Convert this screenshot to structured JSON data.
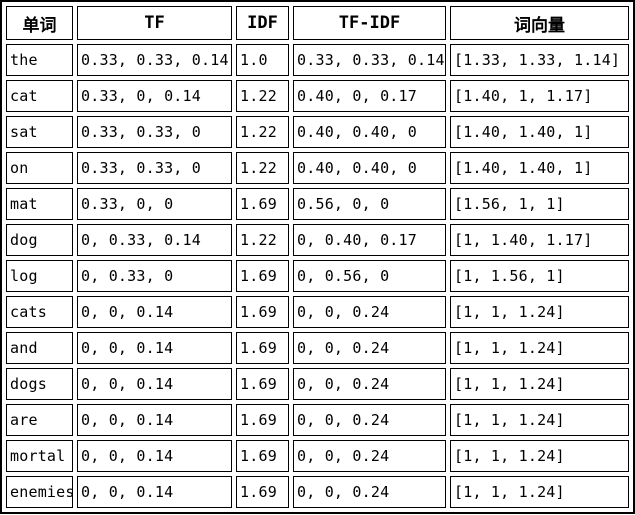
{
  "colors": {
    "border": "#000000",
    "text": "#000000",
    "background": "#ffffff"
  },
  "chart_data": {
    "type": "table",
    "columns": [
      {
        "key": "word",
        "label": "单词"
      },
      {
        "key": "tf",
        "label": "TF"
      },
      {
        "key": "idf",
        "label": "IDF"
      },
      {
        "key": "tfidf",
        "label": "TF-IDF"
      },
      {
        "key": "vector",
        "label": "词向量"
      }
    ],
    "rows": [
      {
        "word": "the",
        "tf": "0.33, 0.33, 0.14",
        "idf": "1.0",
        "tfidf": "0.33, 0.33, 0.14",
        "vector": "[1.33, 1.33, 1.14]"
      },
      {
        "word": "cat",
        "tf": "0.33, 0, 0.14",
        "idf": "1.22",
        "tfidf": "0.40, 0, 0.17",
        "vector": "[1.40, 1, 1.17]"
      },
      {
        "word": "sat",
        "tf": "0.33, 0.33, 0",
        "idf": "1.22",
        "tfidf": "0.40, 0.40, 0",
        "vector": "[1.40, 1.40, 1]"
      },
      {
        "word": "on",
        "tf": "0.33, 0.33, 0",
        "idf": "1.22",
        "tfidf": "0.40, 0.40, 0",
        "vector": "[1.40, 1.40, 1]"
      },
      {
        "word": "mat",
        "tf": "0.33, 0, 0",
        "idf": "1.69",
        "tfidf": "0.56, 0, 0",
        "vector": "[1.56, 1, 1]"
      },
      {
        "word": "dog",
        "tf": "0, 0.33, 0.14",
        "idf": "1.22",
        "tfidf": "0, 0.40, 0.17",
        "vector": "[1, 1.40, 1.17]"
      },
      {
        "word": "log",
        "tf": "0, 0.33, 0",
        "idf": "1.69",
        "tfidf": "0, 0.56, 0",
        "vector": "[1, 1.56, 1]"
      },
      {
        "word": "cats",
        "tf": "0, 0, 0.14",
        "idf": "1.69",
        "tfidf": "0, 0, 0.24",
        "vector": "[1, 1, 1.24]"
      },
      {
        "word": "and",
        "tf": "0, 0, 0.14",
        "idf": "1.69",
        "tfidf": "0, 0, 0.24",
        "vector": "[1, 1, 1.24]"
      },
      {
        "word": "dogs",
        "tf": "0, 0, 0.14",
        "idf": "1.69",
        "tfidf": "0, 0, 0.24",
        "vector": "[1, 1, 1.24]"
      },
      {
        "word": "are",
        "tf": "0, 0, 0.14",
        "idf": "1.69",
        "tfidf": "0, 0, 0.24",
        "vector": "[1, 1, 1.24]"
      },
      {
        "word": "mortal",
        "tf": "0, 0, 0.14",
        "idf": "1.69",
        "tfidf": "0, 0, 0.24",
        "vector": "[1, 1, 1.24]"
      },
      {
        "word": "enemies",
        "tf": "0, 0, 0.14",
        "idf": "1.69",
        "tfidf": "0, 0, 0.24",
        "vector": "[1, 1, 1.24]"
      }
    ]
  }
}
